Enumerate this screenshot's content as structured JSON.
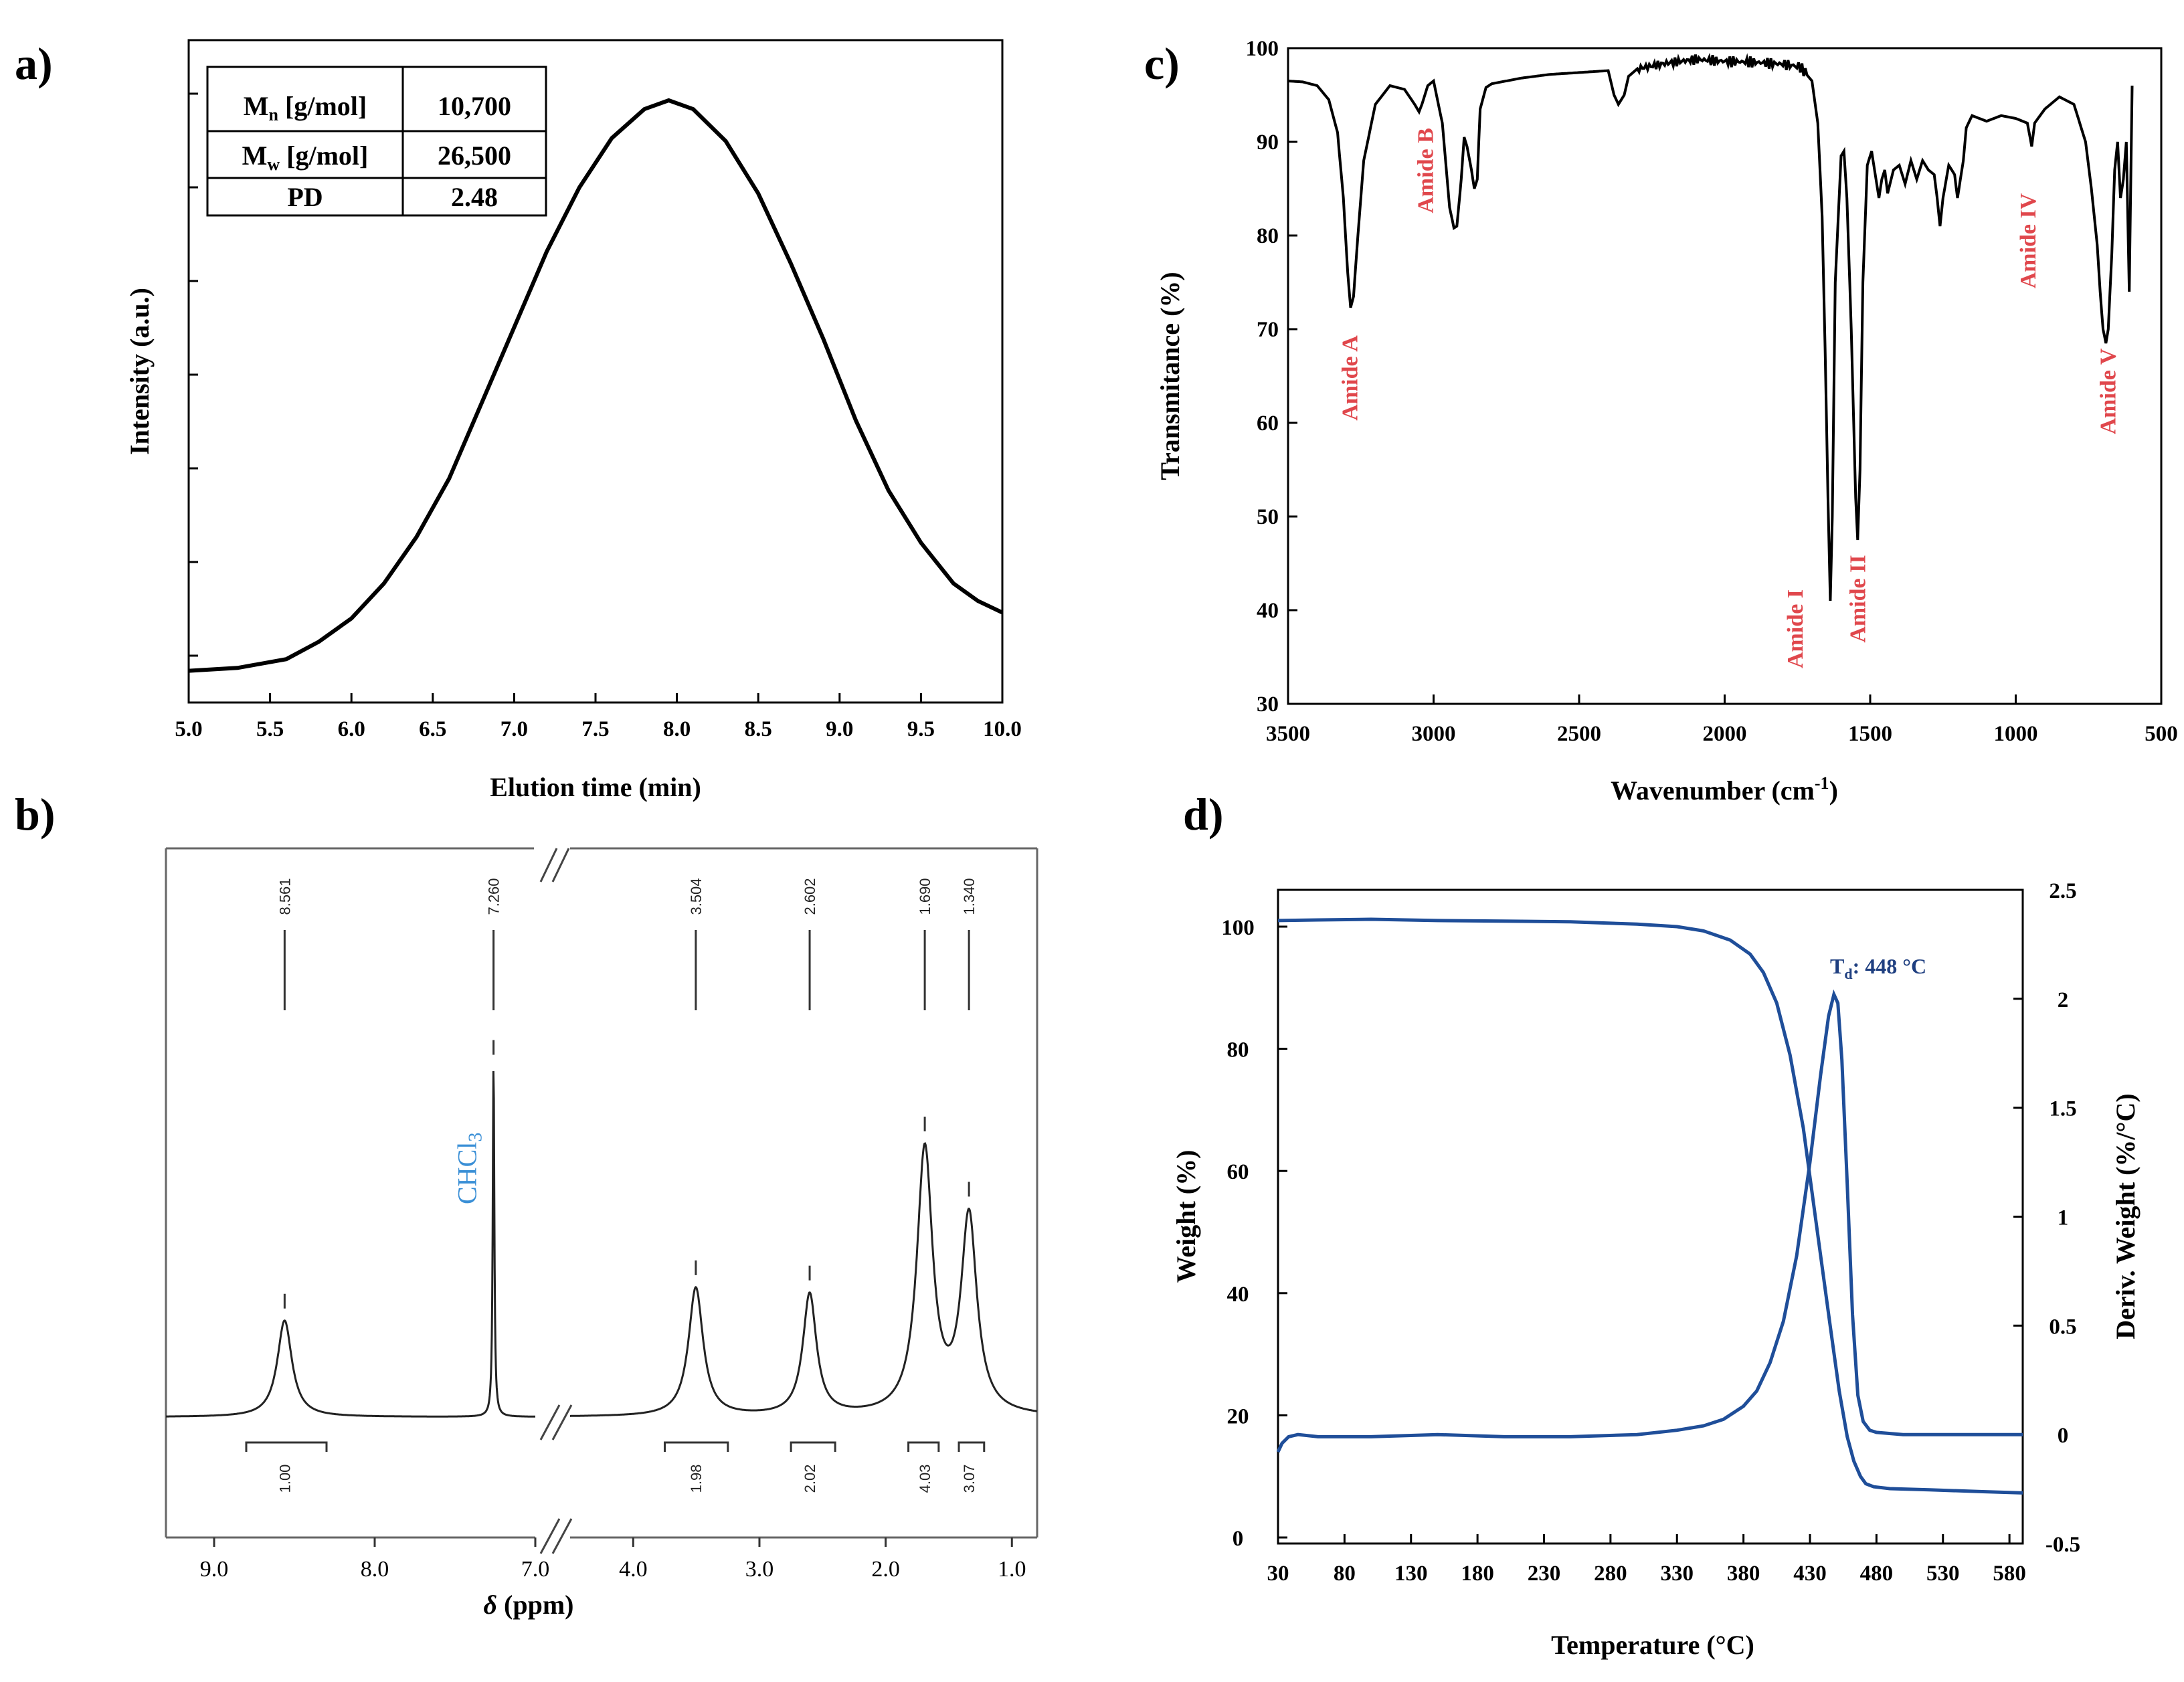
{
  "panels": {
    "a": {
      "letter": "a)",
      "chart_data": {
        "type": "line",
        "xlabel": "Elution time (min)",
        "ylabel": "Intensity (a.u.)",
        "xlim": [
          5.0,
          10.0
        ],
        "ylim": [
          0,
          1.05
        ],
        "x_ticks": [
          "5.0",
          "5.5",
          "6.0",
          "6.5",
          "7.0",
          "7.5",
          "8.0",
          "8.5",
          "9.0",
          "9.5",
          "10.0"
        ],
        "y_tick_count": 7,
        "series": [
          {
            "color": "#000000",
            "x": [
              5.0,
              5.3,
              5.6,
              5.8,
              6.0,
              6.2,
              6.4,
              6.6,
              6.8,
              7.0,
              7.2,
              7.4,
              7.6,
              7.8,
              7.95,
              8.1,
              8.3,
              8.5,
              8.7,
              8.9,
              9.1,
              9.3,
              9.5,
              9.7,
              9.85,
              10.0
            ],
            "y": [
              0.02,
              0.025,
              0.04,
              0.07,
              0.11,
              0.17,
              0.25,
              0.35,
              0.48,
              0.61,
              0.74,
              0.85,
              0.935,
              0.985,
              1.0,
              0.985,
              0.93,
              0.84,
              0.72,
              0.59,
              0.45,
              0.33,
              0.24,
              0.17,
              0.14,
              0.12
            ]
          }
        ]
      },
      "table": {
        "rows": [
          {
            "label_main": "M",
            "label_sub": "n",
            "label_rest": " [g/mol]",
            "value": "10,700"
          },
          {
            "label_main": "M",
            "label_sub": "w",
            "label_rest": " [g/mol]",
            "value": "26,500"
          },
          {
            "label_main": "PD",
            "label_sub": "",
            "label_rest": "",
            "value": "2.48"
          }
        ]
      }
    },
    "b": {
      "letter": "b)",
      "chart_data": {
        "type": "line",
        "xlabel_italic": "δ",
        "xlabel_rest": " (ppm)",
        "x_ticks": [
          "9.0",
          "8.0",
          "7.0",
          "4.0",
          "3.0",
          "2.0",
          "1.0"
        ],
        "axis_break": [
          4.5,
          6.9
        ],
        "peaks": [
          {
            "shift": 8.561,
            "label": "8.561",
            "height": 0.27,
            "width": 0.055,
            "integral": "1.00",
            "int_range": [
              8.8,
              8.3
            ]
          },
          {
            "shift": 7.26,
            "label": "7.260",
            "height": 0.98,
            "width": 0.006,
            "integral": "",
            "int_range": null
          },
          {
            "shift": 3.504,
            "label": "3.504",
            "height": 0.36,
            "width": 0.07,
            "integral": "1.98",
            "int_range": [
              3.75,
              3.25
            ]
          },
          {
            "shift": 2.602,
            "label": "2.602",
            "height": 0.34,
            "width": 0.065,
            "integral": "2.02",
            "int_range": [
              2.75,
              2.4
            ]
          },
          {
            "shift": 1.69,
            "label": "1.690",
            "height": 0.74,
            "width": 0.075,
            "integral": "4.03",
            "int_range": [
              1.82,
              1.58
            ]
          },
          {
            "shift": 1.34,
            "label": "1.340",
            "height": 0.55,
            "width": 0.075,
            "integral": "3.07",
            "int_range": [
              1.42,
              1.22
            ]
          }
        ],
        "annotation": {
          "main": "CHCl",
          "sub": "3",
          "shift": 7.26,
          "color": "#3a8fd6"
        }
      }
    },
    "c": {
      "letter": "c)",
      "chart_data": {
        "type": "line",
        "xlabel_main": "Wavenumber (cm",
        "xlabel_sup": "-1",
        "xlabel_end": ")",
        "ylabel": "Transmitance  (%)",
        "xlim": [
          3500,
          500
        ],
        "ylim": [
          30,
          100
        ],
        "x_ticks": [
          "3500",
          "3000",
          "2500",
          "2000",
          "1500",
          "1000",
          "500"
        ],
        "y_ticks": [
          "30",
          "40",
          "50",
          "60",
          "70",
          "80",
          "90",
          "100"
        ],
        "series": [
          {
            "color": "#000000",
            "x": [
              3500,
              3450,
              3400,
              3360,
              3330,
              3310,
              3295,
              3285,
              3275,
              3260,
              3240,
              3200,
              3150,
              3100,
              3065,
              3050,
              3040,
              3020,
              3000,
              2970,
              2945,
              2930,
              2920,
              2905,
              2895,
              2885,
              2870,
              2860,
              2850,
              2840,
              2820,
              2800,
              2700,
              2600,
              2500,
              2400,
              2380,
              2365,
              2345,
              2330,
              2300,
              2200,
              2100,
              2000,
              1900,
              1800,
              1740,
              1700,
              1680,
              1665,
              1655,
              1645,
              1637,
              1630,
              1620,
              1600,
              1590,
              1580,
              1565,
              1550,
              1543,
              1535,
              1525,
              1510,
              1495,
              1480,
              1470,
              1460,
              1450,
              1440,
              1420,
              1400,
              1380,
              1360,
              1340,
              1320,
              1300,
              1280,
              1270,
              1260,
              1250,
              1230,
              1210,
              1200,
              1190,
              1180,
              1170,
              1150,
              1100,
              1050,
              1000,
              960,
              945,
              935,
              900,
              850,
              800,
              760,
              740,
              720,
              710,
              700,
              690,
              682,
              670,
              660,
              650,
              640,
              630,
              620,
              610,
              600
            ],
            "y": [
              96.5,
              96.4,
              96.0,
              94.5,
              91.0,
              84.0,
              76.0,
              72.3,
              73.5,
              80.0,
              88.0,
              94.0,
              96.0,
              95.6,
              94.0,
              93.2,
              94.0,
              96.0,
              96.5,
              92.0,
              83.0,
              80.8,
              81.0,
              86.0,
              90.5,
              89.5,
              87.0,
              85.0,
              86.0,
              93.5,
              95.8,
              96.2,
              96.8,
              97.2,
              97.4,
              97.6,
              95.0,
              94.0,
              95.0,
              97.0,
              97.8,
              98.4,
              98.8,
              98.6,
              98.5,
              98.3,
              98.0,
              96.5,
              92.0,
              82.0,
              68.0,
              52.0,
              41.0,
              50.0,
              75.0,
              88.5,
              89.0,
              84.0,
              70.0,
              52.0,
              47.5,
              55.0,
              75.0,
              87.5,
              89.0,
              86.0,
              84.0,
              86.0,
              87.0,
              84.5,
              87.0,
              87.5,
              85.5,
              88.0,
              86.0,
              88.0,
              87.0,
              86.5,
              84.0,
              81.0,
              84.0,
              87.5,
              86.5,
              84.0,
              86.0,
              88.0,
              91.5,
              92.8,
              92.2,
              92.8,
              92.5,
              92.0,
              89.5,
              92.0,
              93.5,
              94.8,
              94.0,
              90.0,
              85.0,
              79.0,
              74.0,
              70.0,
              68.5,
              70.0,
              78.0,
              87.0,
              90.0,
              84.0,
              86.0,
              90.0,
              74.0,
              96.0
            ]
          }
        ],
        "annotations": [
          {
            "text": "Amide A",
            "x": 3290
          },
          {
            "text": "Amide B",
            "x": 3030
          },
          {
            "text": "Amide I",
            "x": 1760
          },
          {
            "text": "Amide II",
            "x": 1545
          },
          {
            "text": "Amide IV",
            "x": 960
          },
          {
            "text": "Amide V",
            "x": 680
          }
        ]
      }
    },
    "d": {
      "letter": "d)",
      "chart_data": {
        "type": "line",
        "xlabel": "Temperature (°C)",
        "ylabel": "Weight (%)",
        "y2label": "Deriv. Weight (%/°C)",
        "xlim": [
          30,
          590
        ],
        "ylim": [
          0,
          106
        ],
        "y2lim": [
          -0.5,
          2.5
        ],
        "x_ticks": [
          "30",
          "80",
          "130",
          "180",
          "230",
          "280",
          "330",
          "380",
          "430",
          "480",
          "530",
          "580"
        ],
        "y_ticks": [
          "0",
          "20",
          "40",
          "60",
          "80",
          "100"
        ],
        "y2_ticks": [
          "-0.5",
          "0",
          "0.5",
          "1",
          "1.5",
          "2",
          "2.5"
        ],
        "annotation": {
          "main": "T",
          "sub": "d",
          "rest": ": 448 °C",
          "color": "#1f3f80"
        },
        "series": [
          {
            "axis": "left",
            "color": "#1f4e99",
            "x": [
              30,
              60,
              100,
              150,
              200,
              250,
              300,
              330,
              350,
              370,
              385,
              395,
              405,
              415,
              425,
              435,
              445,
              452,
              458,
              463,
              468,
              472,
              478,
              490,
              520,
              560,
              590
            ],
            "y": [
              101.0,
              101.1,
              101.2,
              101.0,
              100.9,
              100.8,
              100.4,
              100.0,
              99.3,
              97.8,
              95.5,
              92.5,
              87.5,
              79.0,
              67.0,
              51.0,
              35.0,
              24.0,
              16.5,
              12.5,
              10.0,
              8.8,
              8.3,
              8.0,
              7.8,
              7.5,
              7.3
            ]
          },
          {
            "axis": "right",
            "color": "#1f4e99",
            "x": [
              30,
              33,
              38,
              45,
              60,
              100,
              150,
              200,
              250,
              300,
              330,
              350,
              365,
              380,
              390,
              400,
              410,
              420,
              430,
              438,
              444,
              448,
              451,
              454,
              458,
              462,
              466,
              470,
              475,
              480,
              500,
              540,
              590
            ],
            "y": [
              -0.08,
              -0.04,
              -0.01,
              0.0,
              -0.01,
              -0.01,
              0.0,
              -0.01,
              -0.01,
              0.0,
              0.02,
              0.04,
              0.07,
              0.13,
              0.2,
              0.33,
              0.52,
              0.82,
              1.25,
              1.65,
              1.92,
              2.02,
              1.98,
              1.72,
              1.15,
              0.55,
              0.18,
              0.06,
              0.02,
              0.01,
              0.0,
              0.0,
              0.0
            ]
          }
        ]
      }
    }
  }
}
